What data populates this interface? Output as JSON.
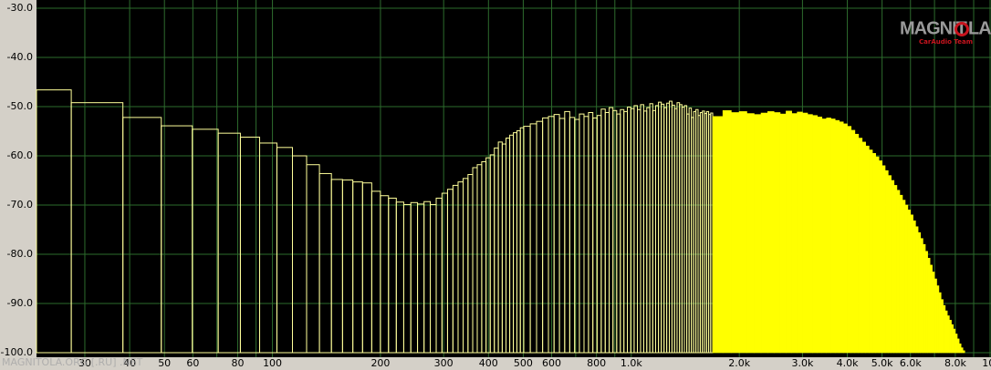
{
  "chart_data": {
    "type": "spectrum",
    "log_x": true,
    "xlim": [
      22,
      10000
    ],
    "ylim": [
      -100,
      -30
    ],
    "xticks": [
      30,
      40,
      50,
      60,
      80,
      100,
      200,
      300,
      400,
      500,
      600,
      800,
      {
        "value": 1000,
        "label": "1.0k"
      },
      {
        "value": 2000,
        "label": "2.0k"
      },
      {
        "value": 3000,
        "label": "3.0k"
      },
      {
        "value": 4000,
        "label": "4.0k"
      },
      {
        "value": 5000,
        "label": "5.0k"
      },
      {
        "value": 6000,
        "label": "6.0k"
      },
      {
        "value": 8000,
        "label": "8.0k"
      },
      {
        "value": 10000,
        "label": "10."
      }
    ],
    "xminor": [
      70,
      90,
      700,
      900,
      7000,
      9000
    ],
    "yticks": [
      {
        "value": -30,
        "label": "-30.0"
      },
      {
        "value": -40,
        "label": "-40.0"
      },
      {
        "value": -50,
        "label": "-50.0"
      },
      {
        "value": -60,
        "label": "-60.0"
      },
      {
        "value": -70,
        "label": "-70.0"
      },
      {
        "value": -80,
        "label": "-80.0"
      },
      {
        "value": -90,
        "label": "-90.0"
      },
      {
        "value": -100,
        "label": "-100.0"
      }
    ],
    "grid": true,
    "grid_color": "#2d6b2d",
    "background": "#000000",
    "series": [
      {
        "style": "outline",
        "color": "#ffff9a",
        "bins": [
          22,
          27.5,
          38.3,
          49.0,
          59.8,
          70.6,
          81.4,
          92.1,
          102.9,
          113.7,
          124.5,
          135.2,
          146,
          156.8,
          167.5,
          178.3,
          189.1,
          199.9,
          210.6,
          221.4,
          232.2,
          243,
          253.7,
          264.5,
          275.3,
          286,
          296.8,
          307.6,
          318.4,
          329.1,
          339.9,
          350.7,
          361.5,
          372.2,
          383,
          393.8,
          404.5,
          415.3,
          426.1,
          436.9,
          447.6,
          458.4,
          469.2,
          480,
          490.7,
          501.5,
          523.0,
          544.6,
          566.1,
          587.7,
          609.2,
          630.7,
          652.3,
          673.8,
          695.4,
          716.9,
          738.4,
          760.0,
          781.5,
          803.1,
          824.6,
          846.1,
          867.7,
          889.2,
          910.8,
          932.3,
          953.8,
          975.4,
          996.9,
          1018.5,
          1040.0,
          1061.5,
          1083.1,
          1104.6,
          1126.2,
          1147.7,
          1169.2,
          1190.8,
          1212.3,
          1233.9,
          1255.4,
          1276.9,
          1298.5,
          1320.0,
          1341.6,
          1363.1,
          1384.6,
          1406.2,
          1427.7,
          1449.3,
          1470.8,
          1492.3,
          1513.9,
          1535.4,
          1557.0,
          1578.5,
          1600.0,
          1621.6,
          1643.1,
          1664.7,
          1686.2
        ],
        "values": [
          -46.6,
          -49.2,
          -52.2,
          -53.9,
          -54.6,
          -55.4,
          -56.2,
          -57.4,
          -58.3,
          -60.0,
          -61.8,
          -63.6,
          -64.8,
          -64.9,
          -65.3,
          -65.5,
          -67.2,
          -68.1,
          -68.6,
          -69.4,
          -69.9,
          -69.5,
          -69.8,
          -69.3,
          -69.9,
          -68.6,
          -67.6,
          -66.8,
          -66.0,
          -65.3,
          -64.6,
          -63.8,
          -62.4,
          -61.8,
          -61.2,
          -60.4,
          -59.8,
          -58.4,
          -57.2,
          -57.6,
          -56.4,
          -55.8,
          -55.3,
          -54.9,
          -54.3,
          -54.0,
          -53.5,
          -53.0,
          -52.3,
          -52.0,
          -51.6,
          -52.4,
          -51.0,
          -52.2,
          -52.6,
          -51.5,
          -52.0,
          -51.2,
          -52.3,
          -51.8,
          -50.5,
          -51.2,
          -50.2,
          -50.8,
          -51.5,
          -50.6,
          -51.0,
          -50.1,
          -50.4,
          -49.8,
          -50.6,
          -49.6,
          -50.9,
          -50.2,
          -49.4,
          -50.8,
          -49.8,
          -49.1,
          -49.5,
          -50.2,
          -49.3,
          -48.9,
          -49.7,
          -50.4,
          -49.2,
          -49.6,
          -50.1,
          -49.8,
          -51.5,
          -50.3,
          -52.2,
          -51.0,
          -50.6,
          -51.8,
          -51.2,
          -50.9,
          -51.4,
          -51.0,
          -51.6,
          -51.3
        ]
      },
      {
        "style": "fill",
        "color": "#ffff00",
        "bins": [
          1686.2,
          1800,
          1900,
          2000,
          2100,
          2200,
          2300,
          2400,
          2500,
          2600,
          2700,
          2800,
          2900,
          3000,
          3100,
          3200,
          3300,
          3400,
          3500,
          3600,
          3700,
          3800,
          3900,
          4000,
          4100,
          4200,
          4300,
          4400,
          4500,
          4600,
          4700,
          4800,
          4900,
          5000,
          5100,
          5200,
          5300,
          5400,
          5500,
          5600,
          5700,
          5800,
          5900,
          6000,
          6100,
          6200,
          6300,
          6400,
          6500,
          6600,
          6700,
          6800,
          6900,
          7000,
          7100,
          7200,
          7300,
          7400,
          7500,
          7600,
          7700,
          7800,
          7900,
          8000,
          8100,
          8200,
          8300,
          8400,
          8500,
          8600
        ],
        "values": [
          -52.0,
          -50.8,
          -51.2,
          -51.0,
          -51.4,
          -51.6,
          -51.3,
          -51.0,
          -51.2,
          -51.5,
          -50.9,
          -51.4,
          -51.1,
          -51.3,
          -51.6,
          -51.8,
          -52.1,
          -52.5,
          -52.3,
          -52.5,
          -52.8,
          -53.1,
          -53.5,
          -54.0,
          -54.8,
          -55.6,
          -56.4,
          -57.2,
          -58.0,
          -58.8,
          -59.5,
          -60.2,
          -61.0,
          -62.0,
          -63.0,
          -64.0,
          -65.0,
          -66.0,
          -67.0,
          -68.0,
          -69.0,
          -70.0,
          -71.0,
          -72.0,
          -73.2,
          -74.4,
          -75.6,
          -76.8,
          -78.0,
          -79.4,
          -80.8,
          -82.2,
          -83.6,
          -85.0,
          -86.4,
          -87.8,
          -89.2,
          -90.4,
          -91.5,
          -92.5,
          -93.4,
          -94.3,
          -95.2,
          -96.2,
          -97.2,
          -98.2,
          -99.0,
          -99.6,
          -100.0
        ]
      }
    ]
  },
  "logo": {
    "left": "MAGNIT",
    "right": "LA",
    "sub": "CarAudio Team"
  },
  "watermark": "MAGNITOLA.ORG [.RU] .NET"
}
